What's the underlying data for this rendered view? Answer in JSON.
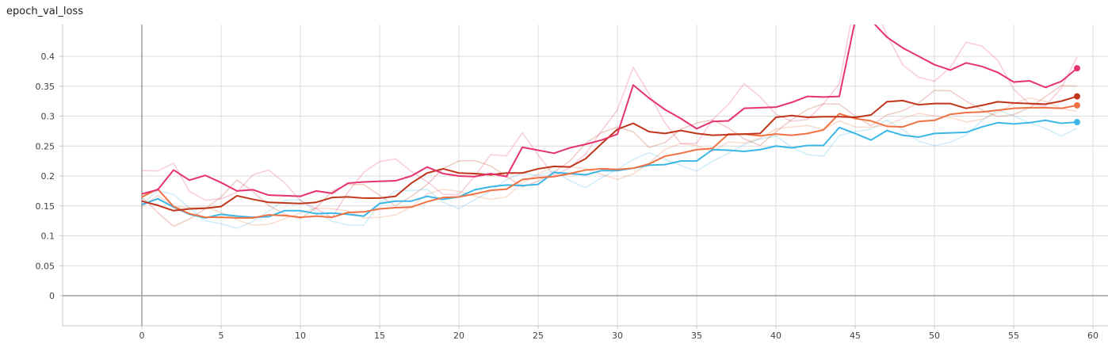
{
  "chart_data": {
    "type": "line",
    "title": "epoch_val_loss",
    "xlabel": "",
    "ylabel": "",
    "xlim": [
      -5,
      61
    ],
    "ylim": [
      -0.05,
      0.45
    ],
    "x_ticks": [
      0,
      5,
      10,
      15,
      20,
      25,
      30,
      35,
      40,
      45,
      50,
      55,
      60
    ],
    "y_ticks": [
      0,
      0.05,
      0.1,
      0.15,
      0.2,
      0.25,
      0.3,
      0.35,
      0.4
    ],
    "x_tick_labels": [
      "0",
      "5",
      "10",
      "15",
      "20",
      "25",
      "30",
      "35",
      "40",
      "45",
      "50",
      "55",
      "60"
    ],
    "y_tick_labels": [
      "0",
      "0.05",
      "0.1",
      "0.15",
      "0.2",
      "0.25",
      "0.3",
      "0.35",
      "0.4"
    ],
    "grid": true,
    "colors": {
      "blue": "#3ab7e6",
      "orange": "#ef7244",
      "darkred": "#c0361a",
      "pink": "#e5336e"
    },
    "series": [
      {
        "color": "#3ab7e6",
        "x": [
          0,
          1,
          2,
          3,
          4,
          5,
          6,
          7,
          8,
          9,
          10,
          11,
          12,
          13,
          14,
          15,
          16,
          17,
          18,
          19,
          20,
          21,
          22,
          23,
          24,
          25,
          26,
          27,
          28,
          29,
          30,
          31,
          32,
          33,
          34,
          35,
          36,
          37,
          38,
          39,
          40,
          41,
          42,
          43,
          44,
          45,
          46,
          47,
          48,
          49,
          50,
          51,
          52,
          53,
          54,
          55,
          56,
          57,
          58,
          59
        ],
        "values": [
          0.152,
          0.162,
          0.148,
          0.136,
          0.13,
          0.136,
          0.133,
          0.131,
          0.132,
          0.142,
          0.142,
          0.137,
          0.138,
          0.136,
          0.133,
          0.154,
          0.158,
          0.158,
          0.166,
          0.161,
          0.165,
          0.177,
          0.182,
          0.185,
          0.184,
          0.186,
          0.206,
          0.204,
          0.202,
          0.209,
          0.209,
          0.213,
          0.218,
          0.219,
          0.225,
          0.225,
          0.244,
          0.243,
          0.241,
          0.244,
          0.25,
          0.247,
          0.251,
          0.251,
          0.281,
          0.271,
          0.26,
          0.276,
          0.268,
          0.265,
          0.271,
          0.272,
          0.273,
          0.282,
          0.289,
          0.287,
          0.289,
          0.293,
          0.288,
          0.29
        ]
      },
      {
        "color": "#ef7244",
        "x": [
          0,
          1,
          2,
          3,
          4,
          5,
          6,
          7,
          8,
          9,
          10,
          11,
          12,
          13,
          14,
          15,
          16,
          17,
          18,
          19,
          20,
          21,
          22,
          23,
          24,
          25,
          26,
          27,
          28,
          29,
          30,
          31,
          32,
          33,
          34,
          35,
          36,
          37,
          38,
          39,
          40,
          41,
          42,
          43,
          44,
          45,
          46,
          47,
          48,
          49,
          50,
          51,
          52,
          53,
          54,
          55,
          56,
          57,
          58,
          59
        ],
        "values": [
          0.165,
          0.178,
          0.149,
          0.137,
          0.131,
          0.131,
          0.13,
          0.13,
          0.135,
          0.134,
          0.131,
          0.133,
          0.131,
          0.139,
          0.14,
          0.145,
          0.147,
          0.148,
          0.157,
          0.164,
          0.165,
          0.17,
          0.176,
          0.178,
          0.194,
          0.197,
          0.199,
          0.204,
          0.21,
          0.212,
          0.211,
          0.213,
          0.22,
          0.233,
          0.238,
          0.244,
          0.246,
          0.27,
          0.27,
          0.267,
          0.27,
          0.268,
          0.271,
          0.277,
          0.304,
          0.296,
          0.292,
          0.283,
          0.282,
          0.291,
          0.293,
          0.303,
          0.306,
          0.307,
          0.31,
          0.313,
          0.314,
          0.314,
          0.313,
          0.318
        ]
      },
      {
        "color": "#c0361a",
        "x": [
          0,
          1,
          2,
          3,
          4,
          5,
          6,
          7,
          8,
          9,
          10,
          11,
          12,
          13,
          14,
          15,
          16,
          17,
          18,
          19,
          20,
          21,
          22,
          23,
          24,
          25,
          26,
          27,
          28,
          29,
          30,
          31,
          32,
          33,
          34,
          35,
          36,
          37,
          38,
          39,
          40,
          41,
          42,
          43,
          44,
          45,
          46,
          47,
          48,
          49,
          50,
          51,
          52,
          53,
          54,
          55,
          56,
          57,
          58,
          59
        ],
        "values": [
          0.158,
          0.151,
          0.142,
          0.145,
          0.146,
          0.149,
          0.167,
          0.161,
          0.156,
          0.155,
          0.154,
          0.156,
          0.164,
          0.165,
          0.163,
          0.163,
          0.166,
          0.188,
          0.205,
          0.212,
          0.205,
          0.204,
          0.202,
          0.205,
          0.205,
          0.212,
          0.216,
          0.215,
          0.229,
          0.254,
          0.278,
          0.288,
          0.274,
          0.271,
          0.276,
          0.271,
          0.268,
          0.269,
          0.27,
          0.271,
          0.298,
          0.301,
          0.298,
          0.299,
          0.299,
          0.298,
          0.302,
          0.324,
          0.326,
          0.319,
          0.321,
          0.321,
          0.313,
          0.318,
          0.324,
          0.322,
          0.321,
          0.32,
          0.325,
          0.333
        ]
      },
      {
        "color": "#e5336e",
        "x": [
          0,
          1,
          2,
          3,
          4,
          5,
          6,
          7,
          8,
          9,
          10,
          11,
          12,
          13,
          14,
          15,
          16,
          17,
          18,
          19,
          20,
          21,
          22,
          23,
          24,
          25,
          26,
          27,
          28,
          29,
          30,
          31,
          32,
          33,
          34,
          35,
          36,
          37,
          38,
          39,
          40,
          41,
          42,
          43,
          44,
          45,
          46,
          47,
          48,
          49,
          50,
          51,
          52,
          53,
          54,
          55,
          56,
          57,
          58,
          59
        ],
        "values": [
          0.17,
          0.177,
          0.21,
          0.193,
          0.201,
          0.189,
          0.175,
          0.177,
          0.168,
          0.167,
          0.166,
          0.175,
          0.171,
          0.188,
          0.19,
          0.191,
          0.192,
          0.2,
          0.215,
          0.204,
          0.2,
          0.199,
          0.204,
          0.199,
          0.248,
          0.243,
          0.238,
          0.247,
          0.253,
          0.26,
          0.27,
          0.352,
          0.33,
          0.311,
          0.296,
          0.279,
          0.291,
          0.292,
          0.313,
          0.314,
          0.315,
          0.323,
          0.333,
          0.332,
          0.333,
          0.46,
          0.46,
          0.432,
          0.414,
          0.4,
          0.386,
          0.377,
          0.389,
          0.383,
          0.373,
          0.357,
          0.359,
          0.348,
          0.358,
          0.38
        ]
      }
    ]
  }
}
